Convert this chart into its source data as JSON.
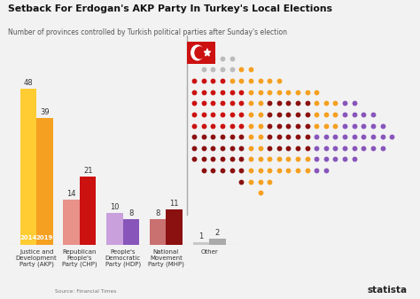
{
  "title": "Setback For Erdogan's AKP Party In Turkey's Local Elections",
  "subtitle": "Number of provinces controlled by Turkish political parties after Sunday's election",
  "source": "Source: Financial Times",
  "categories": [
    "Justice and\nDevelopment\nParty (AKP)",
    "Republican\nPeople's\nParty (CHP)",
    "People's\nDemocratic\nParty (HDP)",
    "National\nMovement\nParty (MHP)",
    "Other"
  ],
  "values_2014": [
    48,
    14,
    10,
    8,
    1
  ],
  "values_2019": [
    39,
    21,
    8,
    11,
    2
  ],
  "colors_2014": [
    "#FFCC33",
    "#E8928A",
    "#C9A0DC",
    "#C97070",
    "#C8C8C8"
  ],
  "colors_2019": [
    "#F5A020",
    "#CC1111",
    "#8855BB",
    "#8B1010",
    "#AAAAAA"
  ],
  "ylim": [
    0,
    55
  ],
  "bar_width": 0.38,
  "bg_color": "#F2F2F2",
  "title_color": "#111111",
  "label_2014": "2014",
  "label_2019": "2019",
  "dot_colors": {
    "AKP": "#F5A020",
    "CHP": "#CC1111",
    "HDP": "#8855BB",
    "MHP": "#8B1010",
    "gray": "#BBBBBB"
  }
}
